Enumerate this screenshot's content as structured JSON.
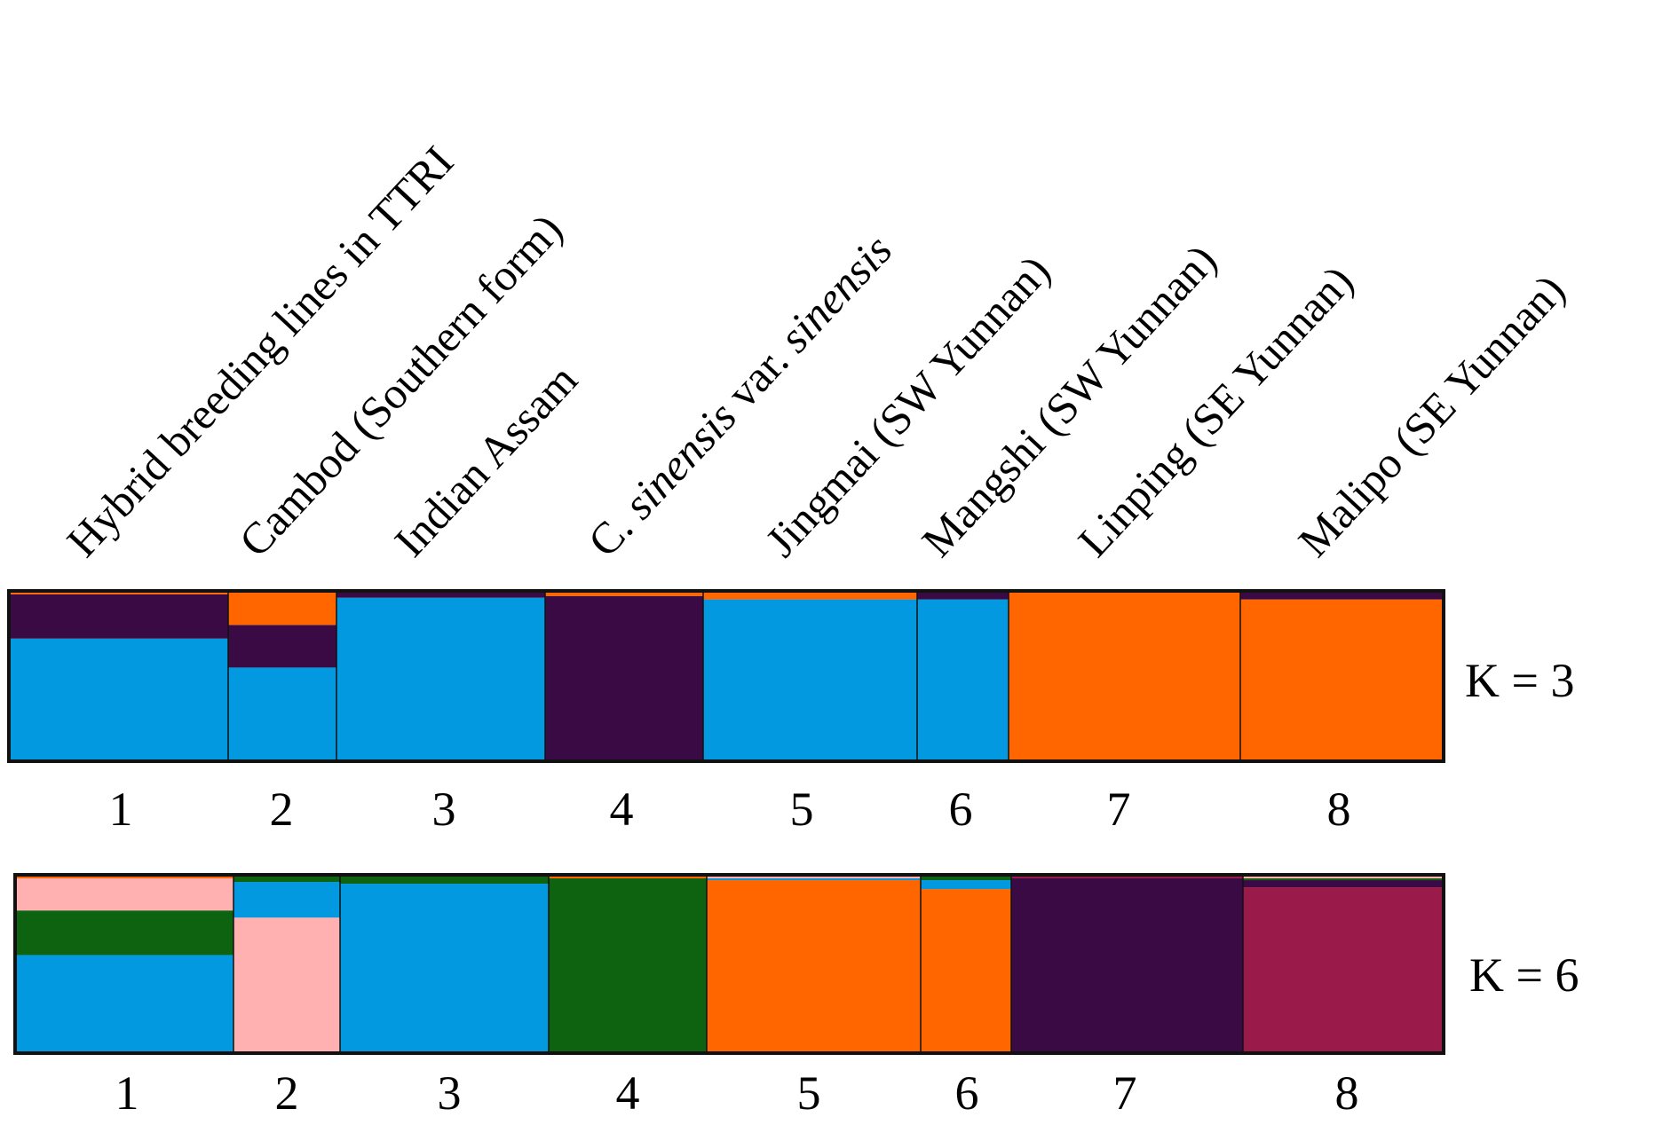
{
  "chart_data": [
    {
      "type": "bar",
      "stacked": true,
      "title": "K = 3",
      "categories": [
        "1",
        "2",
        "3",
        "4",
        "5",
        "6",
        "7",
        "8"
      ],
      "group_labels": [
        {
          "pre": "Hybrid breeding lines in TTRI"
        },
        {
          "pre": "Cambod (Southern form)"
        },
        {
          "pre": "Indian Assam"
        },
        {
          "pre": "C. ",
          "it1": "sinensis",
          "mid": " var. ",
          "it2": "sinensis"
        },
        {
          "pre": "Jingmai (SW Yunnan)"
        },
        {
          "pre": "Mangshi (SW Yunnan)"
        },
        {
          "pre": "Linping (SE Yunnan)"
        },
        {
          "pre": "Malipo (SE Yunnan)"
        }
      ],
      "ylim": [
        0,
        1
      ],
      "series": [
        {
          "color": "#0299e0",
          "values": [
            0.72,
            0.55,
            0.96,
            0.01,
            0.95,
            0.95,
            0.0,
            0.01
          ]
        },
        {
          "color": "#3a0a45",
          "values": [
            0.26,
            0.25,
            0.03,
            0.97,
            0.0,
            0.04,
            0.01,
            0.04
          ]
        },
        {
          "color": "#ff6600",
          "values": [
            0.02,
            0.2,
            0.01,
            0.02,
            0.05,
            0.01,
            0.99,
            0.95
          ]
        }
      ]
    },
    {
      "type": "bar",
      "stacked": true,
      "title": "K = 6",
      "categories": [
        "1",
        "2",
        "3",
        "4",
        "5",
        "6",
        "7",
        "8"
      ],
      "ylim": [
        0,
        1
      ],
      "series": [
        {
          "color": "#0299e0",
          "values": [
            0.55,
            0.2,
            0.95,
            0.0,
            0.01,
            0.05,
            0.0,
            0.0
          ]
        },
        {
          "color": "#0e6310",
          "values": [
            0.25,
            0.03,
            0.04,
            0.98,
            0.0,
            0.02,
            0.0,
            0.01
          ]
        },
        {
          "color": "#ffb0b0",
          "values": [
            0.18,
            0.76,
            0.0,
            0.0,
            0.01,
            0.0,
            0.0,
            0.01
          ]
        },
        {
          "color": "#ff6600",
          "values": [
            0.02,
            0.01,
            0.01,
            0.01,
            0.97,
            0.92,
            0.0,
            0.01
          ]
        },
        {
          "color": "#3a0a45",
          "values": [
            0.0,
            0.0,
            0.0,
            0.01,
            0.01,
            0.01,
            0.98,
            0.04
          ]
        },
        {
          "color": "#9a1a4a",
          "values": [
            0.0,
            0.0,
            0.0,
            0.0,
            0.0,
            0.0,
            0.02,
            0.93
          ]
        }
      ]
    }
  ]
}
